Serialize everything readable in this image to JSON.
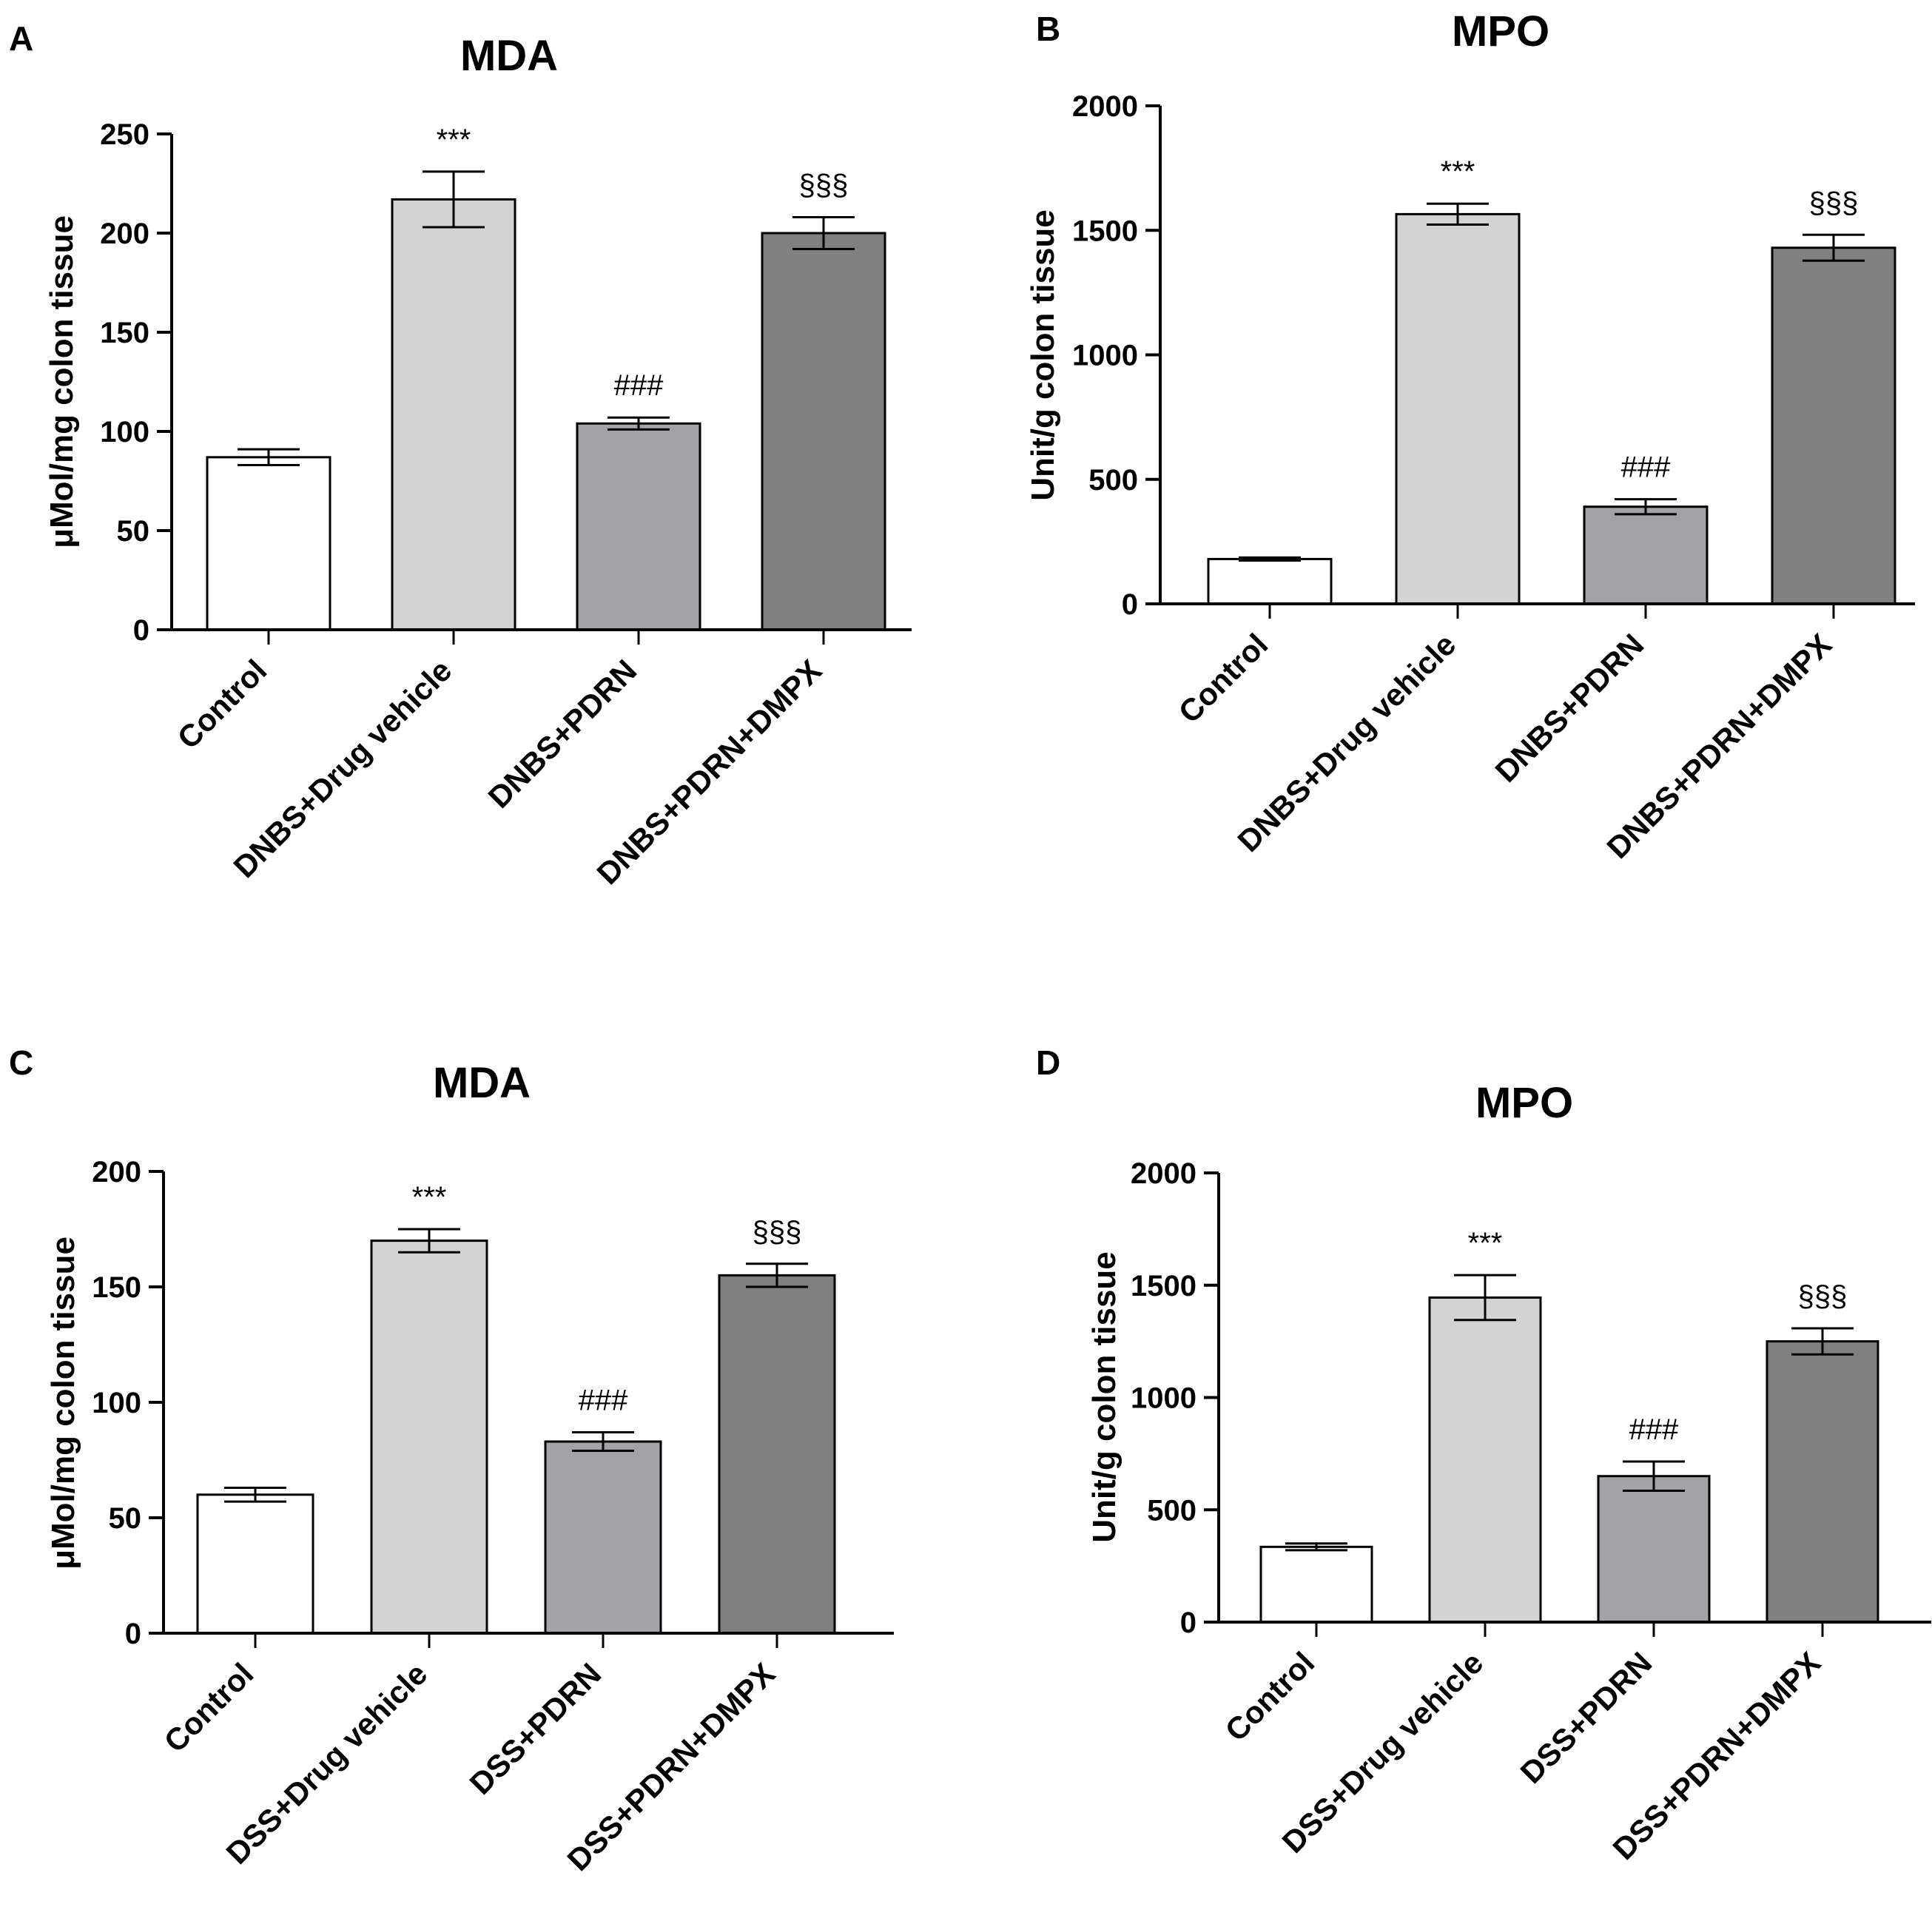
{
  "chart_data": [
    {
      "type": "bar",
      "panel": "A",
      "title": "MDA",
      "ylabel": "μMol/mg colon tissue",
      "ylim": [
        0,
        250
      ],
      "yticks": [
        0,
        50,
        100,
        150,
        200,
        250
      ],
      "categories": [
        "Control",
        "DNBS+Drug vehicle",
        "DNBS+PDRN",
        "DNBS+PDRN+DMPX"
      ],
      "values": [
        87,
        217,
        104,
        200
      ],
      "errors": [
        4,
        14,
        3,
        8
      ],
      "annotations": [
        "",
        "***",
        "###",
        "§§§"
      ],
      "colors": [
        "#ffffff",
        "#d3d3d3",
        "#a2a2a7",
        "#808080"
      ]
    },
    {
      "type": "bar",
      "panel": "B",
      "title": "MPO",
      "ylabel": "Unit/g colon tissue",
      "ylim": [
        0,
        2000
      ],
      "yticks": [
        0,
        500,
        1000,
        1500,
        2000
      ],
      "categories": [
        "Control",
        "DNBS+Drug vehicle",
        "DNBS+PDRN",
        "DNBS+PDRN+DMPX"
      ],
      "values": [
        180,
        1565,
        390,
        1430
      ],
      "errors": [
        6,
        42,
        30,
        52
      ],
      "annotations": [
        "",
        "***",
        "###",
        "§§§"
      ],
      "colors": [
        "#ffffff",
        "#d3d3d3",
        "#a2a2a7",
        "#808080"
      ]
    },
    {
      "type": "bar",
      "panel": "C",
      "title": "MDA",
      "ylabel": "μMol/mg colon tissue",
      "ylim": [
        0,
        200
      ],
      "yticks": [
        0,
        50,
        100,
        150,
        200
      ],
      "categories": [
        "Control",
        "DSS+Drug vehicle",
        "DSS+PDRN",
        "DSS+PDRN+DMPX"
      ],
      "values": [
        60,
        170,
        83,
        155
      ],
      "errors": [
        3,
        5,
        4,
        5
      ],
      "annotations": [
        "",
        "***",
        "###",
        "§§§"
      ],
      "colors": [
        "#ffffff",
        "#d3d3d3",
        "#a2a2a7",
        "#808080"
      ]
    },
    {
      "type": "bar",
      "panel": "D",
      "title": "MPO",
      "ylabel": "Unit/g colon tissue",
      "ylim": [
        0,
        2000
      ],
      "yticks": [
        0,
        500,
        1000,
        1500,
        2000
      ],
      "categories": [
        "Control",
        "DSS+Drug vehicle",
        "DSS+PDRN",
        "DSS+PDRN+DMPX"
      ],
      "values": [
        335,
        1445,
        650,
        1250
      ],
      "errors": [
        15,
        100,
        65,
        58
      ],
      "annotations": [
        "",
        "***",
        "###",
        "§§§"
      ],
      "colors": [
        "#ffffff",
        "#d3d3d3",
        "#a2a2a7",
        "#808080"
      ]
    }
  ]
}
